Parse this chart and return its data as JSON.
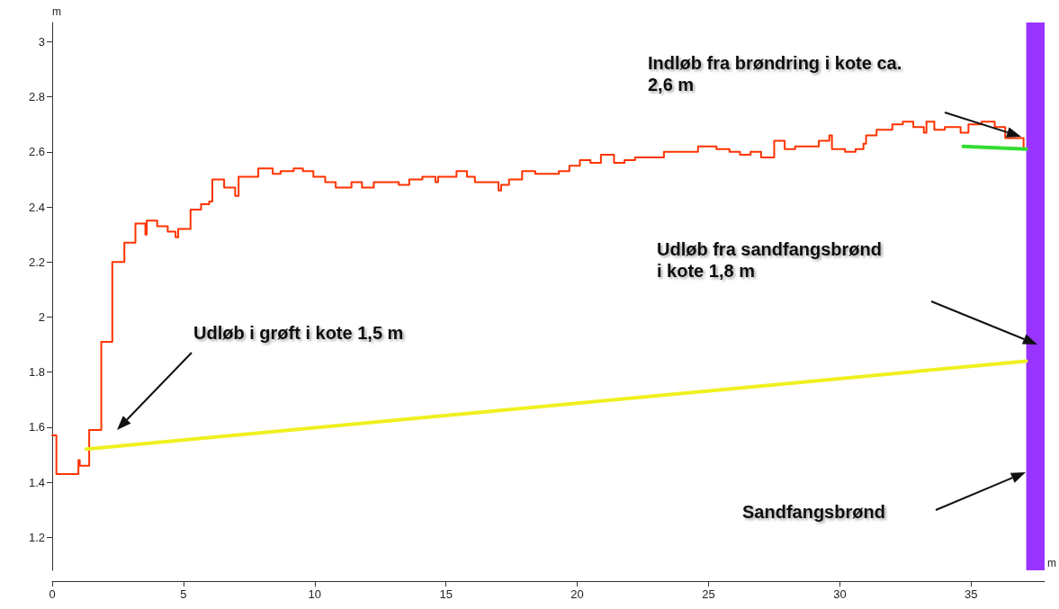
{
  "chart_data": {
    "type": "step",
    "xlabel": "m",
    "ylabel": "m",
    "xlim": [
      0,
      37.8
    ],
    "xticks": [
      0,
      5,
      10,
      15,
      20,
      25,
      30,
      35
    ],
    "ylim": [
      1.08,
      3.07
    ],
    "yticks": [
      1.2,
      1.4,
      1.6,
      1.8,
      2,
      2.2,
      2.4,
      2.6,
      2.8,
      3
    ],
    "series": [
      {
        "color": "#ff3300",
        "x": [
          0,
          0.16,
          1.0,
          1.05,
          1.41,
          1.87,
          2.29,
          2.75,
          3.17,
          3.55,
          3.6,
          4.0,
          4.4,
          4.7,
          4.8,
          5.27,
          5.67,
          5.98,
          6.1,
          6.55,
          6.97,
          7.1,
          7.2,
          7.85,
          8.4,
          8.7,
          9.2,
          9.55,
          9.95,
          10.4,
          10.8,
          11.4,
          11.8,
          12.25,
          13.2,
          13.6,
          14.1,
          14.6,
          14.7,
          15.4,
          15.8,
          16.1,
          17.0,
          17.1,
          17.4,
          17.9,
          18.4,
          19.3,
          19.7,
          20.1,
          20.5,
          20.9,
          21.4,
          21.8,
          22.2,
          23.3,
          23.6,
          24.6,
          25.3,
          25.8,
          26.2,
          26.6,
          27.0,
          27.5,
          27.9,
          28.3,
          29.2,
          29.6,
          29.7,
          30.2,
          30.6,
          30.9,
          31.0,
          31.4,
          32.0,
          32.4,
          32.8,
          33.2,
          33.3,
          33.6,
          34.0,
          34.6,
          34.9,
          35.4,
          35.9,
          36.3,
          37.0,
          37.1
        ],
        "values": [
          1.57,
          1.43,
          1.48,
          1.46,
          1.59,
          1.91,
          2.2,
          2.27,
          2.34,
          2.3,
          2.35,
          2.33,
          2.31,
          2.29,
          2.32,
          2.39,
          2.41,
          2.42,
          2.5,
          2.47,
          2.44,
          2.51,
          2.51,
          2.54,
          2.52,
          2.53,
          2.54,
          2.53,
          2.51,
          2.49,
          2.47,
          2.49,
          2.47,
          2.49,
          2.48,
          2.5,
          2.51,
          2.49,
          2.51,
          2.53,
          2.51,
          2.49,
          2.46,
          2.48,
          2.5,
          2.53,
          2.52,
          2.53,
          2.55,
          2.57,
          2.56,
          2.59,
          2.56,
          2.57,
          2.58,
          2.6,
          2.6,
          2.62,
          2.61,
          2.6,
          2.59,
          2.6,
          2.58,
          2.64,
          2.61,
          2.62,
          2.64,
          2.66,
          2.61,
          2.6,
          2.61,
          2.63,
          2.66,
          2.68,
          2.7,
          2.71,
          2.69,
          2.67,
          2.71,
          2.68,
          2.69,
          2.67,
          2.7,
          2.71,
          2.69,
          2.65,
          2.61,
          2.61
        ]
      },
      {
        "type": "line",
        "color": "#f0f020",
        "x": [
          1.3,
          37.1
        ],
        "values": [
          1.52,
          1.84
        ]
      },
      {
        "type": "line",
        "color": "#33dd33",
        "x": [
          34.7,
          37.1
        ],
        "values": [
          2.62,
          2.61
        ]
      }
    ],
    "bands": [
      {
        "axis": "x",
        "from": 37.1,
        "to": 37.8,
        "color": "#9933ff"
      }
    ],
    "annotations": [
      "Indløb fra brøndring i kote ca.\n2,6 m",
      "Udløb fra sandfangsbrønd\ni kote 1,8 m",
      "Udløb i grøft i kote 1,5 m",
      "Sandfangsbrønd"
    ]
  }
}
